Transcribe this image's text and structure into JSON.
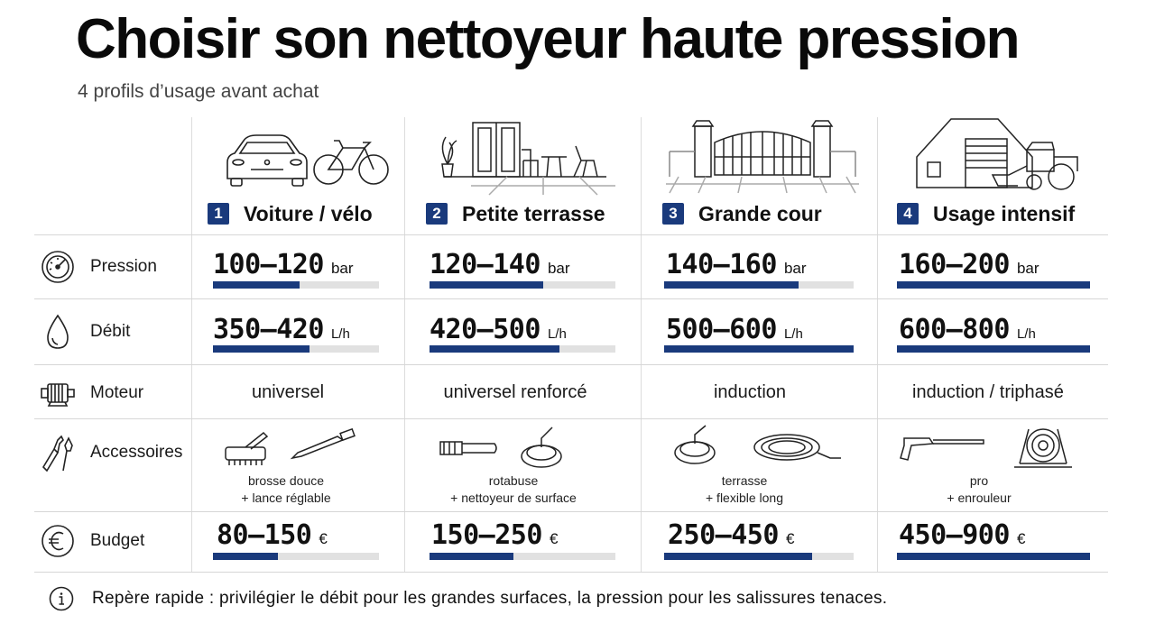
{
  "title": "Choisir son nettoyeur haute pression",
  "subtitle": "4 profils d’usage avant achat",
  "profiles": [
    {
      "num": "1",
      "name": "Voiture / vélo",
      "pressure": "100–120",
      "pressure_level": 0.52,
      "flow": "350–420",
      "flow_level": 0.58,
      "motor": "universel",
      "acc_line1": "brosse douce",
      "acc_line2": "+ lance réglable",
      "budget": "80–150",
      "budget_level": 0.39,
      "illustration": "car-and-bicycle"
    },
    {
      "num": "2",
      "name": "Petite terrasse",
      "pressure": "120–140",
      "pressure_level": 0.61,
      "flow": "420–500",
      "flow_level": 0.7,
      "motor": "universel renforcé",
      "acc_line1": "rotabuse",
      "acc_line2": "+ nettoyeur de surface",
      "budget": "150–250",
      "budget_level": 0.45,
      "illustration": "terrace-furniture"
    },
    {
      "num": "3",
      "name": "Grande cour",
      "pressure": "140–160",
      "pressure_level": 0.71,
      "flow": "500–600",
      "flow_level": 1.0,
      "motor": "induction",
      "acc_line1": "terrasse",
      "acc_line2": "+ flexible long",
      "budget": "250–450",
      "budget_level": 0.78,
      "illustration": "courtyard-gate"
    },
    {
      "num": "4",
      "name": "Usage intensif",
      "pressure": "160–200",
      "pressure_level": 1.0,
      "flow": "600–800",
      "flow_level": 1.0,
      "motor": "induction / triphasé",
      "acc_line1": "pro",
      "acc_line2": "+ enrouleur",
      "budget": "450–900",
      "budget_level": 1.0,
      "illustration": "barn-and-tractor"
    }
  ],
  "row_labels": {
    "pressure": "Pression",
    "flow": "Débit",
    "motor": "Moteur",
    "accessories": "Accessoires",
    "budget": "Budget"
  },
  "units": {
    "pressure": "bar",
    "flow": "L/h",
    "budget": "€"
  },
  "footer": "Repère rapide : privilégier le débit pour les grandes surfaces, la pression pour les salissures tenaces.",
  "colors": {
    "accent": "#1a3a7c",
    "bar_track": "#e1e1e1"
  },
  "icons": [
    "gauge-icon",
    "water-drop-icon",
    "motor-icon",
    "tools-icon",
    "euro-icon",
    "info-icon"
  ]
}
